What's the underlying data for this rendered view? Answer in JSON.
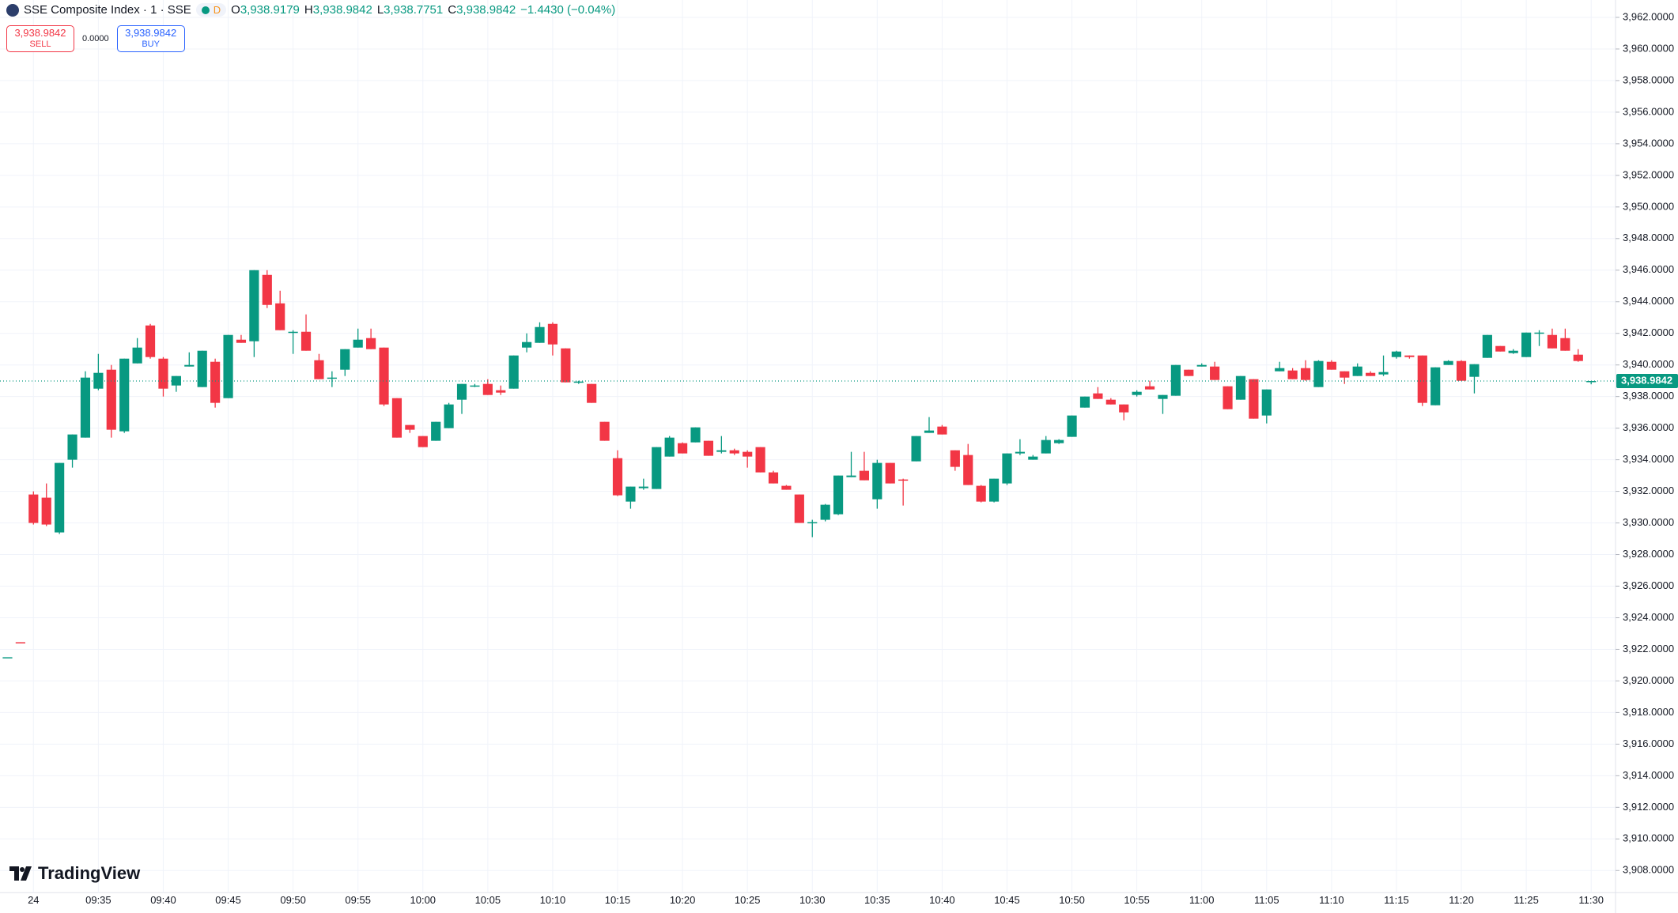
{
  "header": {
    "symbol": "SSE Composite Index · 1 · SSE",
    "badge": "D",
    "ohlc": [
      {
        "key": "O",
        "value": "3,938.9179"
      },
      {
        "key": "H",
        "value": "3,938.9842"
      },
      {
        "key": "L",
        "value": "3,938.7751"
      },
      {
        "key": "C",
        "value": "3,938.9842"
      }
    ],
    "change": "−1.4430 (−0.04%)"
  },
  "trade": {
    "sell_price": "3,938.9842",
    "sell": "SELL",
    "spread": "0.0000",
    "buy_price": "3,938.9842",
    "buy": "BUY"
  },
  "brand": "TradingView",
  "chart_data": {
    "type": "candlestick",
    "up_color": "#089981",
    "down_color": "#f23645",
    "grid": true,
    "last_price": {
      "value": 3938.9842,
      "label": "3,938.9842"
    },
    "categories": [
      null,
      null,
      "24",
      null,
      null,
      null,
      null,
      "09:35",
      null,
      null,
      null,
      null,
      "09:40",
      null,
      null,
      null,
      null,
      "09:45",
      null,
      null,
      null,
      null,
      "09:50",
      null,
      null,
      null,
      null,
      "09:55",
      null,
      null,
      null,
      null,
      "10:00",
      null,
      null,
      null,
      null,
      "10:05",
      null,
      null,
      null,
      null,
      "10:10",
      null,
      null,
      null,
      null,
      "10:15",
      null,
      null,
      null,
      null,
      "10:20",
      null,
      null,
      null,
      null,
      "10:25",
      null,
      null,
      null,
      null,
      "10:30",
      null,
      null,
      null,
      null,
      "10:35",
      null,
      null,
      null,
      null,
      "10:40",
      null,
      null,
      null,
      null,
      "10:45",
      null,
      null,
      null,
      null,
      "10:50",
      null,
      null,
      null,
      null,
      "10:55",
      null,
      null,
      null,
      null,
      "11:00",
      null,
      null,
      null,
      null,
      "11:05",
      null,
      null,
      null,
      null,
      "11:10",
      null,
      null,
      null,
      null,
      "11:15",
      null,
      null,
      null,
      null,
      "11:20",
      null,
      null,
      null,
      null,
      "11:25",
      null,
      null,
      null,
      null,
      "11:30"
    ],
    "open": [
      3921.5,
      3922.45,
      3931.8,
      3931.6,
      3929.4,
      3934.0,
      3935.4,
      3938.5,
      3939.7,
      3935.8,
      3940.1,
      3942.5,
      3940.4,
      3938.7,
      3939.9,
      3938.6,
      3940.2,
      3937.9,
      3941.6,
      3941.5,
      3945.7,
      3943.9,
      3942.1,
      3942.1,
      3940.3,
      3939.2,
      3939.7,
      3941.1,
      3941.7,
      3941.1,
      3937.9,
      3936.2,
      3935.5,
      3935.2,
      3936.0,
      3937.8,
      3938.65,
      3938.8,
      3938.4,
      3938.5,
      3941.1,
      3941.4,
      3942.6,
      3941.05,
      3938.9,
      3938.8,
      3936.4,
      3934.1,
      3931.35,
      3932.2,
      3932.15,
      3934.2,
      3935.05,
      3935.1,
      3935.2,
      3934.5,
      3934.6,
      3934.5,
      3934.8,
      3933.2,
      3932.35,
      3931.8,
      3930.0,
      3930.2,
      3930.55,
      3932.9,
      3933.3,
      3931.5,
      3933.8,
      3932.75,
      3933.9,
      3935.7,
      3936.1,
      3934.6,
      3934.3,
      3932.35,
      3931.35,
      3932.5,
      3934.4,
      3934.0,
      3934.4,
      3935.05,
      3935.45,
      3937.3,
      3938.2,
      3937.8,
      3937.5,
      3938.1,
      3938.65,
      3937.85,
      3938.05,
      3939.7,
      3939.9,
      3939.9,
      3938.65,
      3937.8,
      3939.1,
      3936.8,
      3939.6,
      3939.65,
      3939.8,
      3938.6,
      3940.2,
      3939.6,
      3939.3,
      3939.5,
      3939.4,
      3940.5,
      3940.6,
      3940.6,
      3937.45,
      3940.0,
      3940.25,
      3939.25,
      3940.45,
      3941.2,
      3940.75,
      3940.5,
      3942.05,
      3941.9,
      3941.7,
      3940.65,
      3938.9179
    ],
    "high": [
      3921.5,
      3922.45,
      3932.0,
      3932.5,
      3933.8,
      3935.6,
      3939.6,
      3940.7,
      3940.0,
      3940.4,
      3941.7,
      3942.6,
      3940.5,
      3939.3,
      3940.8,
      3940.9,
      3940.4,
      3941.9,
      3941.9,
      3946.0,
      3946.0,
      3944.7,
      3942.2,
      3943.2,
      3940.7,
      3939.6,
      3941.0,
      3942.3,
      3942.3,
      3941.1,
      3937.9,
      3936.2,
      3935.5,
      3936.4,
      3937.6,
      3938.8,
      3938.8,
      3939.1,
      3938.7,
      3940.6,
      3942.0,
      3942.7,
      3942.7,
      3941.05,
      3939.0,
      3938.8,
      3936.4,
      3934.6,
      3932.3,
      3932.8,
      3934.8,
      3935.5,
      3935.1,
      3936.05,
      3935.2,
      3935.5,
      3934.7,
      3934.6,
      3934.8,
      3933.3,
      3932.4,
      3931.8,
      3930.2,
      3931.2,
      3933.0,
      3934.5,
      3934.5,
      3934.0,
      3933.8,
      3932.8,
      3935.5,
      3936.7,
      3936.2,
      3934.6,
      3935.0,
      3932.4,
      3932.8,
      3934.4,
      3935.3,
      3934.3,
      3935.5,
      3935.3,
      3936.8,
      3938.0,
      3938.6,
      3937.9,
      3937.5,
      3938.4,
      3939.0,
      3938.1,
      3940.0,
      3939.7,
      3940.1,
      3940.2,
      3938.65,
      3939.3,
      3939.1,
      3938.45,
      3940.2,
      3939.8,
      3940.3,
      3940.3,
      3940.3,
      3939.6,
      3940.1,
      3939.6,
      3940.6,
      3940.9,
      3940.6,
      3940.6,
      3939.85,
      3940.3,
      3940.3,
      3940.05,
      3941.9,
      3941.2,
      3941.0,
      3942.05,
      3942.2,
      3942.3,
      3942.3,
      3941.0,
      3938.9842
    ],
    "low": [
      3921.5,
      3922.4,
      3929.9,
      3929.8,
      3929.3,
      3933.5,
      3935.4,
      3938.4,
      3935.4,
      3935.7,
      3940.1,
      3940.4,
      3938.0,
      3938.3,
      3939.9,
      3938.6,
      3937.3,
      3937.9,
      3941.4,
      3940.5,
      3943.6,
      3942.2,
      3940.7,
      3940.9,
      3939.1,
      3938.6,
      3939.3,
      3941.1,
      3941.0,
      3937.4,
      3935.4,
      3935.7,
      3934.8,
      3935.2,
      3936.0,
      3936.9,
      3938.6,
      3938.1,
      3938.1,
      3938.5,
      3940.8,
      3941.4,
      3940.6,
      3938.9,
      3938.8,
      3937.6,
      3935.2,
      3931.7,
      3930.9,
      3932.1,
      3932.15,
      3934.2,
      3934.4,
      3935.1,
      3934.25,
      3934.4,
      3934.3,
      3933.5,
      3933.2,
      3932.5,
      3932.1,
      3930.0,
      3929.1,
      3930.1,
      3930.5,
      3932.9,
      3932.7,
      3930.9,
      3932.5,
      3931.1,
      3933.9,
      3935.7,
      3935.6,
      3933.3,
      3932.4,
      3931.3,
      3931.3,
      3932.4,
      3934.3,
      3934.0,
      3934.4,
      3935.0,
      3935.45,
      3937.3,
      3937.85,
      3937.5,
      3936.5,
      3938.0,
      3938.45,
      3936.9,
      3938.05,
      3939.3,
      3939.9,
      3939.05,
      3937.2,
      3937.8,
      3936.6,
      3936.3,
      3939.6,
      3939.1,
      3939.0,
      3938.6,
      3939.7,
      3938.8,
      3939.3,
      3939.3,
      3939.3,
      3940.4,
      3940.4,
      3937.4,
      3937.45,
      3940.0,
      3939.0,
      3938.2,
      3940.45,
      3940.85,
      3940.7,
      3940.5,
      3941.2,
      3941.05,
      3940.9,
      3940.2,
      3938.7751
    ],
    "close": [
      3921.5,
      3922.4,
      3930.0,
      3929.9,
      3933.8,
      3935.6,
      3939.2,
      3939.5,
      3935.9,
      3940.4,
      3941.1,
      3940.5,
      3938.5,
      3939.3,
      3940.0,
      3940.9,
      3937.6,
      3941.9,
      3941.4,
      3946.0,
      3943.8,
      3942.2,
      3942.1,
      3940.9,
      3939.1,
      3939.2,
      3941.0,
      3941.6,
      3941.0,
      3937.5,
      3935.4,
      3935.9,
      3934.8,
      3936.4,
      3937.5,
      3938.8,
      3938.7,
      3938.1,
      3938.25,
      3940.6,
      3941.45,
      3942.4,
      3941.3,
      3938.9,
      3938.95,
      3937.6,
      3935.2,
      3931.75,
      3932.3,
      3932.3,
      3934.8,
      3935.4,
      3934.4,
      3936.05,
      3934.25,
      3934.6,
      3934.4,
      3934.2,
      3933.2,
      3932.5,
      3932.1,
      3930.0,
      3930.05,
      3931.15,
      3933.0,
      3933.0,
      3932.7,
      3933.8,
      3932.5,
      3932.7,
      3935.5,
      3935.85,
      3935.6,
      3933.55,
      3932.4,
      3931.35,
      3932.8,
      3934.4,
      3934.5,
      3934.2,
      3935.25,
      3935.25,
      3936.8,
      3938.0,
      3937.85,
      3937.5,
      3937.0,
      3938.3,
      3938.45,
      3938.1,
      3940.0,
      3939.3,
      3940.0,
      3939.05,
      3937.2,
      3939.3,
      3936.6,
      3938.45,
      3939.8,
      3939.1,
      3939.05,
      3940.25,
      3939.7,
      3939.2,
      3939.9,
      3939.3,
      3939.55,
      3940.85,
      3940.5,
      3937.6,
      3939.85,
      3940.25,
      3939.0,
      3940.05,
      3941.9,
      3940.85,
      3940.9,
      3942.05,
      3942.05,
      3941.05,
      3940.9,
      3940.25,
      3938.9842
    ],
    "ylim": [
      3906.9,
      3963.1
    ],
    "yticks": [
      {
        "value": 3908,
        "label": "3,908.0000"
      },
      {
        "value": 3910,
        "label": "3,910.0000"
      },
      {
        "value": 3912,
        "label": "3,912.0000"
      },
      {
        "value": 3914,
        "label": "3,914.0000"
      },
      {
        "value": 3916,
        "label": "3,916.0000"
      },
      {
        "value": 3918,
        "label": "3,918.0000"
      },
      {
        "value": 3920,
        "label": "3,920.0000"
      },
      {
        "value": 3922,
        "label": "3,922.0000"
      },
      {
        "value": 3924,
        "label": "3,924.0000"
      },
      {
        "value": 3926,
        "label": "3,926.0000"
      },
      {
        "value": 3928,
        "label": "3,928.0000"
      },
      {
        "value": 3930,
        "label": "3,930.0000"
      },
      {
        "value": 3932,
        "label": "3,932.0000"
      },
      {
        "value": 3934,
        "label": "3,934.0000"
      },
      {
        "value": 3936,
        "label": "3,936.0000"
      },
      {
        "value": 3938,
        "label": "3,938.0000"
      },
      {
        "value": 3940,
        "label": "3,940.0000"
      },
      {
        "value": 3942,
        "label": "3,942.0000"
      },
      {
        "value": 3944,
        "label": "3,944.0000"
      },
      {
        "value": 3946,
        "label": "3,946.0000"
      },
      {
        "value": 3948,
        "label": "3,948.0000"
      },
      {
        "value": 3950,
        "label": "3,950.0000"
      },
      {
        "value": 3952,
        "label": "3,952.0000"
      },
      {
        "value": 3954,
        "label": "3,954.0000"
      },
      {
        "value": 3956,
        "label": "3,956.0000"
      },
      {
        "value": 3958,
        "label": "3,958.0000"
      },
      {
        "value": 3960,
        "label": "3,960.0000"
      },
      {
        "value": 3962,
        "label": "3,962.0000"
      }
    ]
  }
}
